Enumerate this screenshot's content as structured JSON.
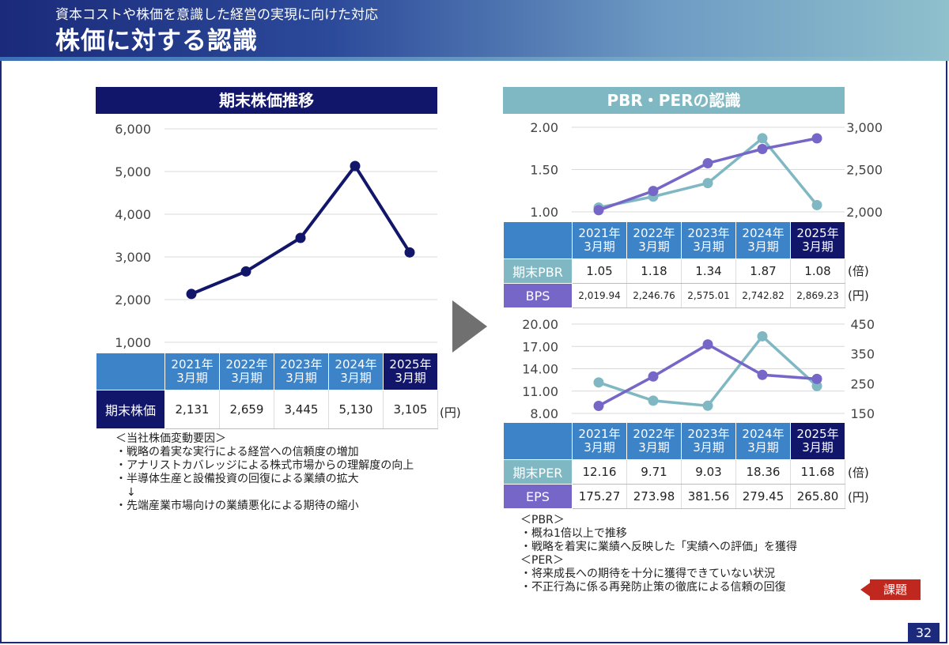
{
  "header": {
    "subtitle": "資本コストや株価を意識した経営の実現に向けた対応",
    "title": "株価に対する認識"
  },
  "left": {
    "section_title": "期末株価推移",
    "row_label": "期末株価",
    "unit": "(円)",
    "notes": "＜当社株価変動要因＞\n・戦略の着実な実行による経営への信頼度の増加\n・アナリストカバレッジによる株式市場からの理解度の向上\n・半導体生産と設備投資の回復による業績の拡大\n　↓\n・先端産業市場向けの業績悪化による期待の縮小"
  },
  "right": {
    "section_title": "PBR・PERの認識",
    "pbr_label": "期末PBR",
    "bps_label": "BPS",
    "per_label": "期末PER",
    "eps_label": "EPS",
    "unit_times": "(倍)",
    "unit_yen": "(円)",
    "notes": "＜PBR＞\n・概ね1倍以上で推移\n・戦略を着実に業績へ反映した「実績への評価」を獲得\n＜PER＞\n・将来成長への期待を十分に獲得できていない状況\n・不正行為に係る再発防止策の徹底による信頼の回復"
  },
  "years": [
    {
      "y": "2021年",
      "m": "3月期"
    },
    {
      "y": "2022年",
      "m": "3月期"
    },
    {
      "y": "2023年",
      "m": "3月期"
    },
    {
      "y": "2024年",
      "m": "3月期"
    },
    {
      "y": "2025年",
      "m": "3月期"
    }
  ],
  "badge": "課題",
  "page_number": "32",
  "colors": {
    "navy": "#12166b",
    "teal": "#7fb8c2",
    "purple": "#7566c8",
    "blue": "#3d83c7"
  },
  "chart_data": [
    {
      "type": "line",
      "title": "期末株価推移",
      "categories": [
        "2021年3月期",
        "2022年3月期",
        "2023年3月期",
        "2024年3月期",
        "2025年3月期"
      ],
      "series": [
        {
          "name": "期末株価",
          "values": [
            2131,
            2659,
            3445,
            5130,
            3105
          ]
        }
      ],
      "value_labels": [
        "2,131",
        "2,659",
        "3,445",
        "5,130",
        "3,105"
      ],
      "yticks": [
        "6,000",
        "5,000",
        "4,000",
        "3,000",
        "2,000",
        "1,000"
      ],
      "ylim": [
        1000,
        6000
      ],
      "grid": true
    },
    {
      "type": "line",
      "title": "PBR・PERの認識",
      "categories": [
        "2021年3月期",
        "2022年3月期",
        "2023年3月期",
        "2024年3月期",
        "2025年3月期"
      ],
      "series": [
        {
          "name": "期末PBR",
          "axis": "left",
          "values": [
            1.05,
            1.18,
            1.34,
            1.87,
            1.08
          ],
          "labels": [
            "1.05",
            "1.18",
            "1.34",
            "1.87",
            "1.08"
          ]
        },
        {
          "name": "BPS",
          "axis": "right",
          "values": [
            2019.94,
            2246.76,
            2575.01,
            2742.82,
            2869.23
          ],
          "labels": [
            "2,019.94",
            "2,246.76",
            "2,575.01",
            "2,742.82",
            "2,869.23"
          ]
        }
      ],
      "yticks_left": [
        "2.00",
        "1.50",
        "1.00"
      ],
      "yticks_right": [
        "3,000",
        "2,500",
        "2,000"
      ],
      "ylim_left": [
        1.0,
        2.0
      ],
      "ylim_right": [
        2000,
        3000
      ],
      "grid": true
    },
    {
      "type": "line",
      "categories": [
        "2021年3月期",
        "2022年3月期",
        "2023年3月期",
        "2024年3月期",
        "2025年3月期"
      ],
      "series": [
        {
          "name": "期末PER",
          "axis": "left",
          "values": [
            12.16,
            9.71,
            9.03,
            18.36,
            11.68
          ],
          "labels": [
            "12.16",
            "9.71",
            "9.03",
            "18.36",
            "11.68"
          ]
        },
        {
          "name": "EPS",
          "axis": "right",
          "values": [
            175.27,
            273.98,
            381.56,
            279.45,
            265.8
          ],
          "labels": [
            "175.27",
            "273.98",
            "381.56",
            "279.45",
            "265.80"
          ]
        }
      ],
      "yticks_left": [
        "20.00",
        "17.00",
        "14.00",
        "11.00",
        "8.00"
      ],
      "yticks_right": [
        "450",
        "350",
        "250",
        "150"
      ],
      "ylim_left": [
        8.0,
        20.0
      ],
      "ylim_right": [
        150,
        450
      ],
      "grid": true
    }
  ]
}
